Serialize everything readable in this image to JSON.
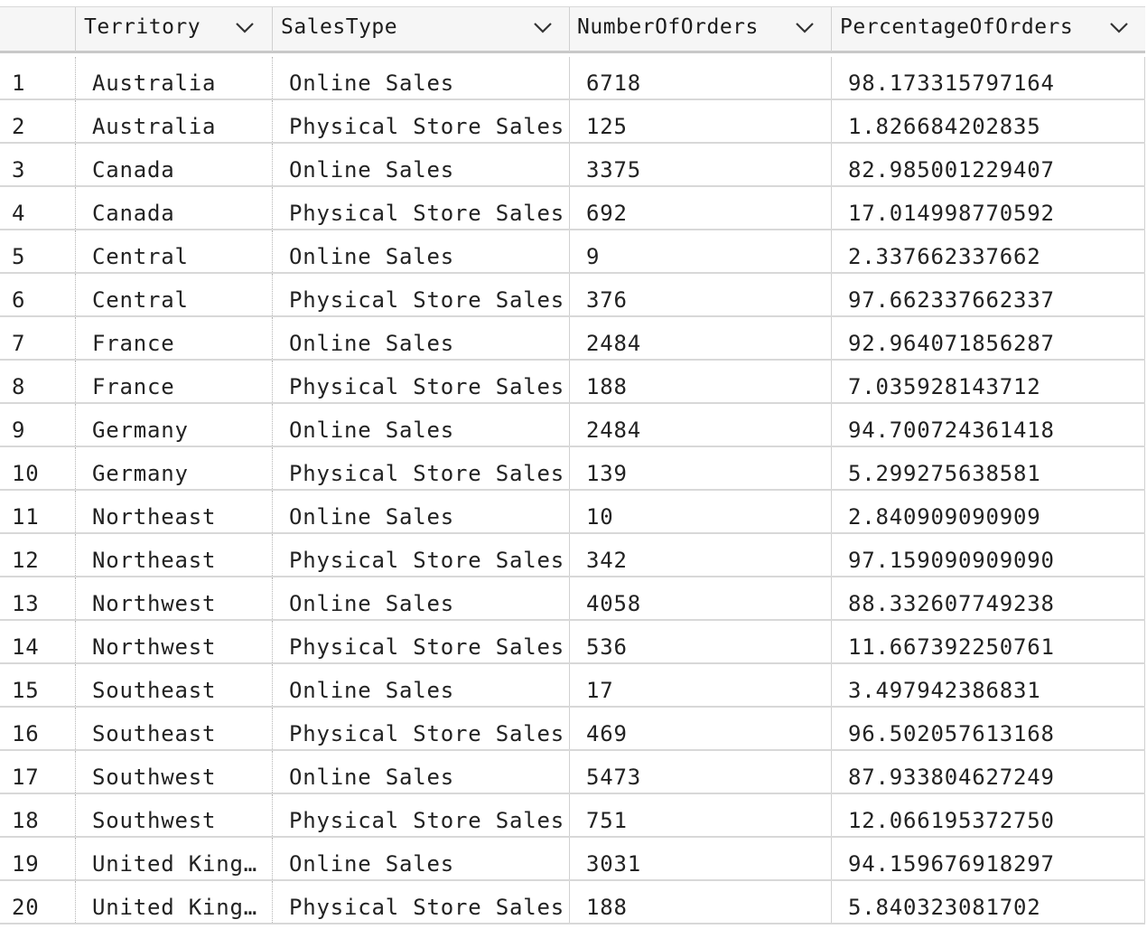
{
  "table": {
    "columns": [
      {
        "label": "",
        "icon": ""
      },
      {
        "label": "Territory",
        "icon": "chevron-down-icon"
      },
      {
        "label": "SalesType",
        "icon": "chevron-down-icon"
      },
      {
        "label": "NumberOfOrders",
        "icon": "chevron-down-icon"
      },
      {
        "label": "PercentageOfOrders",
        "icon": "chevron-down-icon"
      }
    ],
    "rows": [
      {
        "index": "1",
        "territory": "Australia",
        "sales_type": "Online Sales",
        "orders": "6718",
        "percentage": "98.173315797164"
      },
      {
        "index": "2",
        "territory": "Australia",
        "sales_type": "Physical Store Sales",
        "orders": "125",
        "percentage": "1.826684202835"
      },
      {
        "index": "3",
        "territory": "Canada",
        "sales_type": "Online Sales",
        "orders": "3375",
        "percentage": "82.985001229407"
      },
      {
        "index": "4",
        "territory": "Canada",
        "sales_type": "Physical Store Sales",
        "orders": "692",
        "percentage": "17.014998770592"
      },
      {
        "index": "5",
        "territory": "Central",
        "sales_type": "Online Sales",
        "orders": "9",
        "percentage": "2.337662337662"
      },
      {
        "index": "6",
        "territory": "Central",
        "sales_type": "Physical Store Sales",
        "orders": "376",
        "percentage": "97.662337662337"
      },
      {
        "index": "7",
        "territory": "France",
        "sales_type": "Online Sales",
        "orders": "2484",
        "percentage": "92.964071856287"
      },
      {
        "index": "8",
        "territory": "France",
        "sales_type": "Physical Store Sales",
        "orders": "188",
        "percentage": "7.035928143712"
      },
      {
        "index": "9",
        "territory": "Germany",
        "sales_type": "Online Sales",
        "orders": "2484",
        "percentage": "94.700724361418"
      },
      {
        "index": "10",
        "territory": "Germany",
        "sales_type": "Physical Store Sales",
        "orders": "139",
        "percentage": "5.299275638581"
      },
      {
        "index": "11",
        "territory": "Northeast",
        "sales_type": "Online Sales",
        "orders": "10",
        "percentage": "2.840909090909"
      },
      {
        "index": "12",
        "territory": "Northeast",
        "sales_type": "Physical Store Sales",
        "orders": "342",
        "percentage": "97.159090909090"
      },
      {
        "index": "13",
        "territory": "Northwest",
        "sales_type": "Online Sales",
        "orders": "4058",
        "percentage": "88.332607749238"
      },
      {
        "index": "14",
        "territory": "Northwest",
        "sales_type": "Physical Store Sales",
        "orders": "536",
        "percentage": "11.667392250761"
      },
      {
        "index": "15",
        "territory": "Southeast",
        "sales_type": "Online Sales",
        "orders": "17",
        "percentage": "3.497942386831"
      },
      {
        "index": "16",
        "territory": "Southeast",
        "sales_type": "Physical Store Sales",
        "orders": "469",
        "percentage": "96.502057613168"
      },
      {
        "index": "17",
        "territory": "Southwest",
        "sales_type": "Online Sales",
        "orders": "5473",
        "percentage": "87.933804627249"
      },
      {
        "index": "18",
        "territory": "Southwest",
        "sales_type": "Physical Store Sales",
        "orders": "751",
        "percentage": "12.066195372750"
      },
      {
        "index": "19",
        "territory": "United King…",
        "sales_type": "Online Sales",
        "orders": "3031",
        "percentage": "94.159676918297"
      },
      {
        "index": "20",
        "territory": "United King…",
        "sales_type": "Physical Store Sales",
        "orders": "188",
        "percentage": "5.840323081702"
      }
    ]
  }
}
